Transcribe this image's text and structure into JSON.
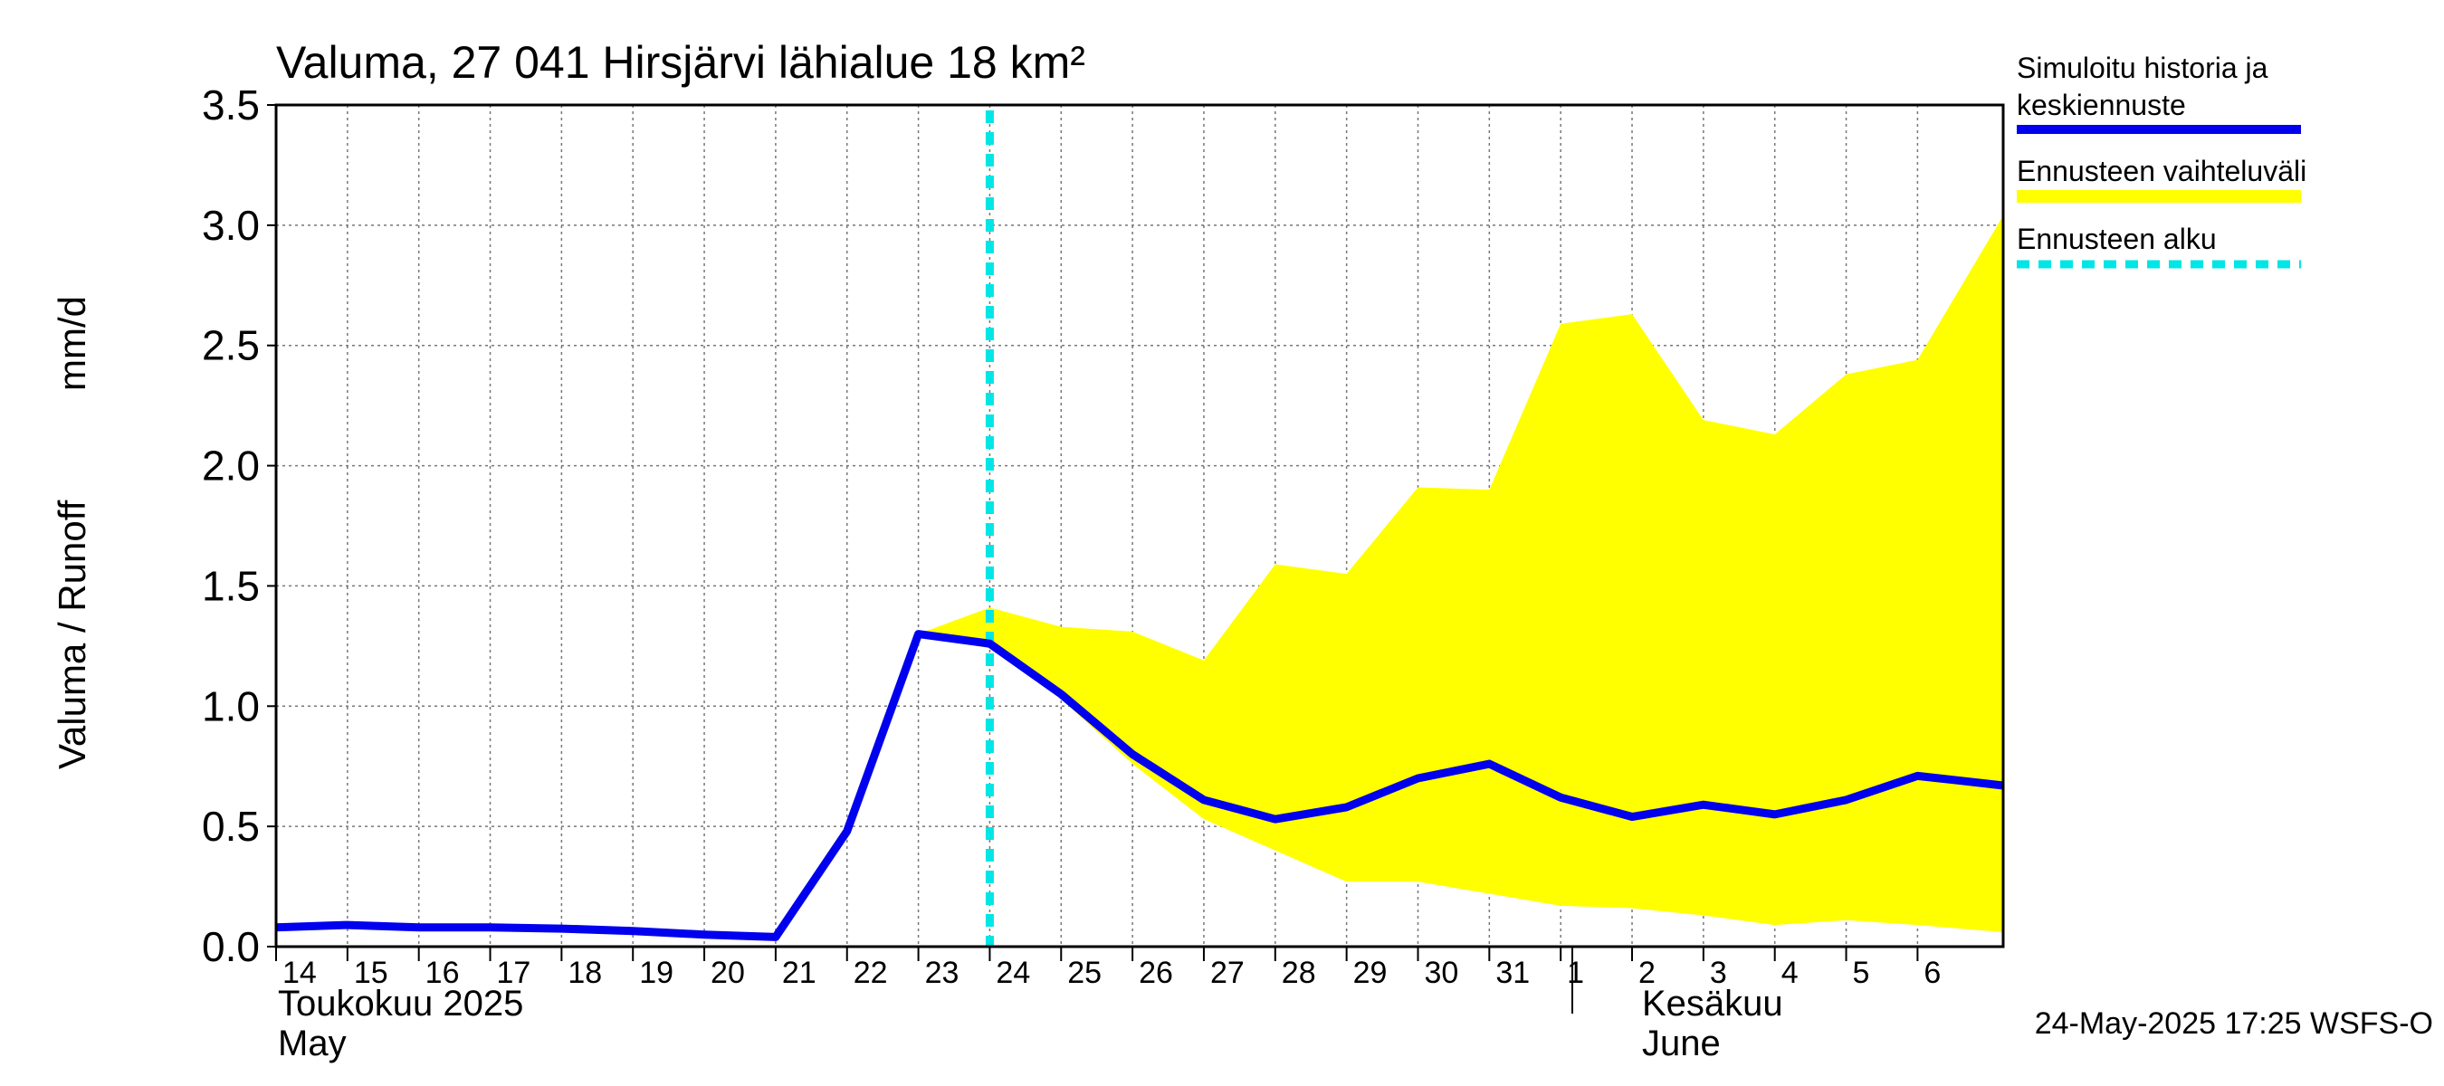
{
  "chart_data": {
    "type": "line",
    "title": "Valuma, 27 041 Hirsjärvi lähialue 18 km²",
    "ylabel_left": "Valuma / Runoff",
    "ylabel_unit": "mm/d",
    "ylim": [
      0,
      3.5
    ],
    "yticks": [
      "0.0",
      "0.5",
      "1.0",
      "1.5",
      "2.0",
      "2.5",
      "3.0",
      "3.5"
    ],
    "xlim": [
      0,
      24.2
    ],
    "xtick_labels": [
      "14",
      "15",
      "16",
      "17",
      "18",
      "19",
      "20",
      "21",
      "22",
      "23",
      "24",
      "25",
      "26",
      "27",
      "28",
      "29",
      "30",
      "31",
      "1",
      "2",
      "3",
      "4",
      "5",
      "6"
    ],
    "month_labels": [
      {
        "line1": "Toukokuu  2025",
        "line2": "May"
      },
      {
        "line1": "Kesäkuu",
        "line2": "June"
      }
    ],
    "forecast_start_x": 10,
    "series": [
      {
        "name": "Simuloitu historia ja keskiennuste",
        "color": "#0000ee",
        "x": [
          0,
          1,
          2,
          3,
          4,
          5,
          6,
          7,
          8,
          9,
          10,
          11,
          12,
          13,
          14,
          15,
          16,
          17,
          18,
          19,
          20,
          21,
          22,
          23,
          24.2
        ],
        "values": [
          0.08,
          0.09,
          0.08,
          0.08,
          0.075,
          0.065,
          0.05,
          0.04,
          0.48,
          1.3,
          1.26,
          1.05,
          0.8,
          0.61,
          0.53,
          0.58,
          0.7,
          0.76,
          0.62,
          0.54,
          0.59,
          0.55,
          0.61,
          0.71,
          0.67
        ]
      }
    ],
    "band": {
      "name": "Ennusteen vaihteluväli",
      "color": "#ffff00",
      "x": [
        9,
        10,
        11,
        12,
        13,
        14,
        15,
        16,
        17,
        18,
        19,
        20,
        21,
        22,
        23,
        24.2
      ],
      "upper": [
        1.3,
        1.41,
        1.33,
        1.31,
        1.19,
        1.59,
        1.55,
        1.91,
        1.9,
        2.59,
        2.63,
        2.19,
        2.13,
        2.38,
        2.44,
        3.04
      ],
      "lower": [
        1.3,
        1.24,
        1.03,
        0.76,
        0.53,
        0.4,
        0.27,
        0.27,
        0.22,
        0.17,
        0.16,
        0.13,
        0.09,
        0.11,
        0.09,
        0.06
      ]
    },
    "legend": [
      {
        "label": "Simuloitu historia ja keskiennuste",
        "color": "#0000ee",
        "style": "solid"
      },
      {
        "label": "Ennusteen vaihteluväli",
        "color": "#ffff00",
        "style": "band"
      },
      {
        "label": "Ennusteen alku",
        "color": "#00e5e5",
        "style": "dashed"
      }
    ],
    "footer": "24-May-2025 17:25 WSFS-O"
  }
}
